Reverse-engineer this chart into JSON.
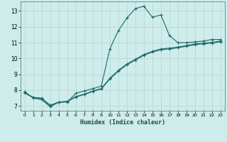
{
  "xlabel": "Humidex (Indice chaleur)",
  "background_color": "#ceecea",
  "grid_color": "#b8d8d6",
  "line_color": "#1a6b6b",
  "spine_color": "#5a8a8a",
  "xlim": [
    -0.5,
    23.5
  ],
  "ylim": [
    6.7,
    13.6
  ],
  "x_ticks": [
    0,
    1,
    2,
    3,
    4,
    5,
    6,
    7,
    8,
    9,
    10,
    11,
    12,
    13,
    14,
    15,
    16,
    17,
    18,
    19,
    20,
    21,
    22,
    23
  ],
  "y_ticks": [
    7,
    8,
    9,
    10,
    11,
    12,
    13
  ],
  "series1_x": [
    0,
    1,
    2,
    3,
    4,
    5,
    6,
    7,
    8,
    9,
    10,
    11,
    12,
    13,
    14,
    15,
    16,
    17,
    18,
    19,
    20,
    21,
    22,
    23
  ],
  "series1_y": [
    7.9,
    7.5,
    7.4,
    6.95,
    7.25,
    7.25,
    7.8,
    7.95,
    8.1,
    8.25,
    10.6,
    11.75,
    12.55,
    13.15,
    13.3,
    12.6,
    12.75,
    11.45,
    11.0,
    11.0,
    11.05,
    11.1,
    11.2,
    11.2
  ],
  "series2_x": [
    0,
    1,
    2,
    3,
    4,
    5,
    6,
    7,
    8,
    9,
    10,
    11,
    12,
    13,
    14,
    15,
    16,
    17,
    18,
    19,
    20,
    21,
    22,
    23
  ],
  "series2_y": [
    7.85,
    7.55,
    7.5,
    7.05,
    7.25,
    7.3,
    7.6,
    7.75,
    7.95,
    8.1,
    8.75,
    9.25,
    9.65,
    9.95,
    10.25,
    10.45,
    10.6,
    10.65,
    10.72,
    10.82,
    10.92,
    10.97,
    11.02,
    11.1
  ],
  "series3_x": [
    0,
    1,
    2,
    3,
    4,
    5,
    6,
    7,
    8,
    9,
    10,
    11,
    12,
    13,
    14,
    15,
    16,
    17,
    18,
    19,
    20,
    21,
    22,
    23
  ],
  "series3_y": [
    7.82,
    7.52,
    7.48,
    7.02,
    7.22,
    7.27,
    7.57,
    7.72,
    7.92,
    8.07,
    8.7,
    9.2,
    9.6,
    9.9,
    10.2,
    10.4,
    10.55,
    10.6,
    10.67,
    10.77,
    10.87,
    10.92,
    10.97,
    11.05
  ]
}
